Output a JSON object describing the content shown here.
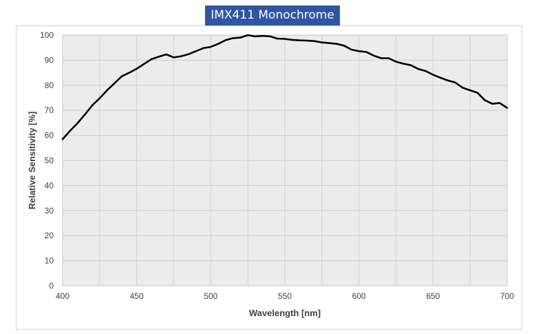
{
  "title": "IMX411 Monochrome",
  "colors": {
    "banner": "#2f55a4",
    "banner_text": "#ffffff",
    "plot_bg": "#ebeceb",
    "grid": "#cfcfcf",
    "line": "#000000"
  },
  "chart_data": {
    "type": "line",
    "title": "IMX411 Monochrome",
    "xlabel": "Wavelength [nm]",
    "ylabel": "Relative Sensitivity [%]",
    "xlim": [
      400,
      700
    ],
    "ylim": [
      0,
      100
    ],
    "xticks": [
      400,
      450,
      500,
      550,
      600,
      650,
      700
    ],
    "yticks": [
      0,
      10,
      20,
      30,
      40,
      50,
      60,
      70,
      80,
      90,
      100
    ],
    "grid": true,
    "legend": null,
    "series": [
      {
        "name": "IMX411 Monochrome",
        "x": [
          400,
          405,
          410,
          415,
          420,
          425,
          430,
          435,
          440,
          445,
          450,
          455,
          460,
          465,
          470,
          475,
          480,
          485,
          490,
          495,
          500,
          505,
          510,
          515,
          520,
          525,
          530,
          535,
          540,
          545,
          550,
          555,
          560,
          565,
          570,
          575,
          580,
          585,
          590,
          595,
          600,
          605,
          610,
          615,
          620,
          625,
          630,
          635,
          640,
          645,
          650,
          655,
          660,
          665,
          670,
          675,
          680,
          685,
          690,
          695,
          700
        ],
        "y": [
          58.5,
          61.8,
          64.8,
          68.3,
          72.0,
          74.8,
          78.0,
          80.8,
          83.6,
          85.0,
          86.6,
          88.5,
          90.4,
          91.4,
          92.3,
          91.1,
          91.6,
          92.4,
          93.6,
          94.8,
          95.3,
          96.5,
          98.0,
          98.8,
          99.0,
          100.0,
          99.5,
          99.7,
          99.5,
          98.6,
          98.5,
          98.1,
          97.9,
          97.8,
          97.6,
          97.1,
          96.8,
          96.5,
          95.8,
          94.2,
          93.6,
          93.3,
          91.8,
          90.8,
          90.8,
          89.4,
          88.6,
          88.0,
          86.5,
          85.7,
          84.2,
          83.0,
          81.9,
          81.1,
          79.0,
          78.0,
          77.0,
          74.0,
          72.6,
          72.9,
          71.0
        ]
      }
    ]
  }
}
